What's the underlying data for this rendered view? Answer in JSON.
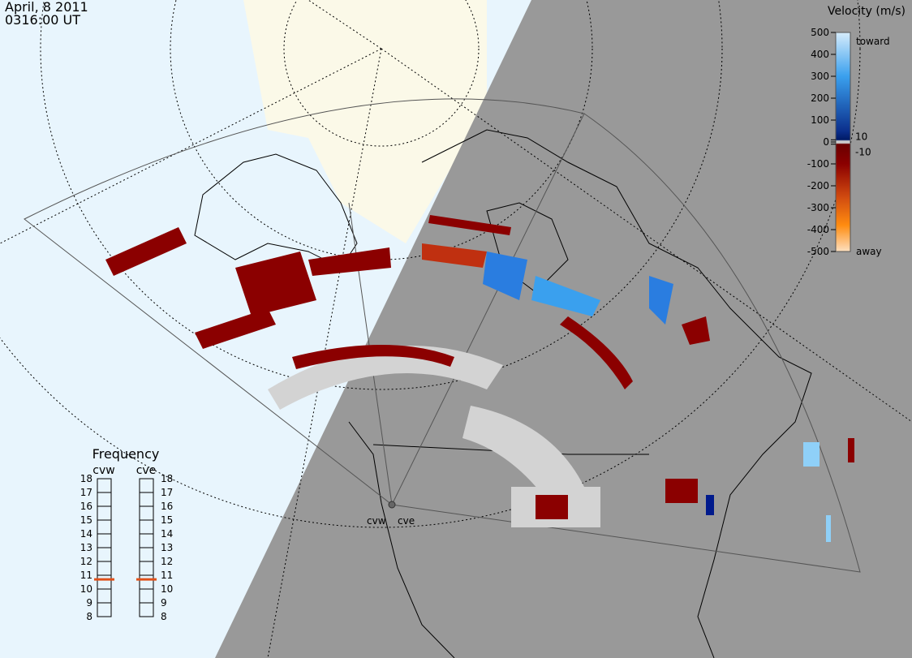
{
  "timestamp": {
    "date": "April, 8 2011",
    "time": "0316:00 UT"
  },
  "velocity_scale": {
    "title": "Velocity (m/s)",
    "range": [
      500,
      -500
    ],
    "ticks": [
      500,
      400,
      300,
      200,
      100,
      10,
      0,
      -10,
      -100,
      -200,
      -300,
      -400,
      -500
    ],
    "toward": "toward",
    "away": "away"
  },
  "frequency": {
    "title": "Frequency",
    "range": [
      8,
      18
    ],
    "ticks": [
      8,
      9,
      10,
      11,
      12,
      13,
      14,
      15,
      16,
      17,
      18
    ],
    "radars": [
      {
        "name": "cvw",
        "value": 10.7
      },
      {
        "name": "cve",
        "value": 10.7
      }
    ]
  },
  "map_labels": [
    "cvw",
    "cve"
  ]
}
